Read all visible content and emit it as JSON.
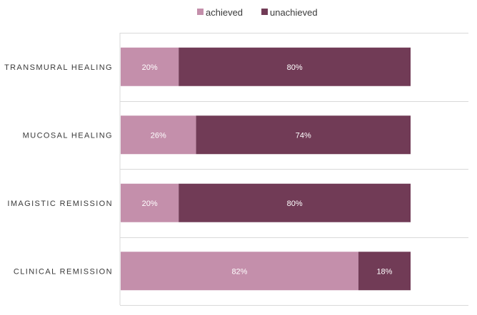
{
  "chart_data": {
    "type": "bar",
    "orientation": "horizontal",
    "stacked": true,
    "categories": [
      "TRANSMURAL HEALING",
      "MUCOSAL HEALING",
      "IMAGISTIC REMISSION",
      "CLINICAL REMISSION"
    ],
    "series": [
      {
        "name": "achieved",
        "color": "#c48fab",
        "values": [
          20,
          26,
          20,
          82
        ]
      },
      {
        "name": "unachieved",
        "color": "#713b56",
        "values": [
          80,
          74,
          80,
          18
        ]
      }
    ],
    "data_labels": [
      [
        "20%",
        "26%",
        "20%",
        "82%"
      ],
      [
        "80%",
        "74%",
        "80%",
        "18%"
      ]
    ],
    "value_unit": "%",
    "xlim": [
      0,
      120
    ],
    "legend_position": "top",
    "grid": "horizontal separators between categories"
  }
}
